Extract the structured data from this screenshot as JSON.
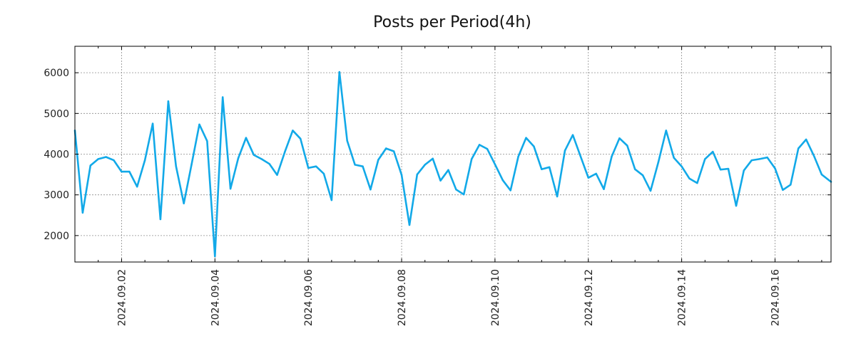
{
  "chart_data": {
    "type": "line",
    "title": "Posts per Period(4h)",
    "xlabel": "",
    "ylabel": "",
    "series_color": "#12a9e8",
    "grid": true,
    "x_start": "2024.09.01",
    "x_end": "2024.09.17",
    "xlim_days": [
      0.0,
      16.2
    ],
    "ylim": [
      1350,
      6650
    ],
    "yticks": [
      2000,
      3000,
      4000,
      5000,
      6000
    ],
    "xtick_labels": [
      {
        "day": 1,
        "label": "2024.09.02"
      },
      {
        "day": 3,
        "label": "2024.09.04"
      },
      {
        "day": 5,
        "label": "2024.09.06"
      },
      {
        "day": 7,
        "label": "2024.09.08"
      },
      {
        "day": 9,
        "label": "2024.09.10"
      },
      {
        "day": 11,
        "label": "2024.09.12"
      },
      {
        "day": 13,
        "label": "2024.09.14"
      },
      {
        "day": 15,
        "label": "2024.09.16"
      }
    ],
    "points": [
      {
        "d": 0.0,
        "v": 4580
      },
      {
        "d": 0.167,
        "v": 2560
      },
      {
        "d": 0.333,
        "v": 3720
      },
      {
        "d": 0.5,
        "v": 3880
      },
      {
        "d": 0.667,
        "v": 3930
      },
      {
        "d": 0.833,
        "v": 3850
      },
      {
        "d": 1.0,
        "v": 3570
      },
      {
        "d": 1.167,
        "v": 3570
      },
      {
        "d": 1.333,
        "v": 3200
      },
      {
        "d": 1.5,
        "v": 3850
      },
      {
        "d": 1.667,
        "v": 4750
      },
      {
        "d": 1.833,
        "v": 2400
      },
      {
        "d": 2.0,
        "v": 5300
      },
      {
        "d": 2.167,
        "v": 3700
      },
      {
        "d": 2.333,
        "v": 2790
      },
      {
        "d": 2.5,
        "v": 3750
      },
      {
        "d": 2.667,
        "v": 4730
      },
      {
        "d": 2.833,
        "v": 4320
      },
      {
        "d": 3.0,
        "v": 1490
      },
      {
        "d": 3.167,
        "v": 5400
      },
      {
        "d": 3.333,
        "v": 3150
      },
      {
        "d": 3.5,
        "v": 3900
      },
      {
        "d": 3.667,
        "v": 4400
      },
      {
        "d": 3.833,
        "v": 3980
      },
      {
        "d": 4.0,
        "v": 3880
      },
      {
        "d": 4.167,
        "v": 3760
      },
      {
        "d": 4.333,
        "v": 3490
      },
      {
        "d": 4.5,
        "v": 4060
      },
      {
        "d": 4.667,
        "v": 4580
      },
      {
        "d": 4.833,
        "v": 4380
      },
      {
        "d": 5.0,
        "v": 3660
      },
      {
        "d": 5.167,
        "v": 3700
      },
      {
        "d": 5.333,
        "v": 3520
      },
      {
        "d": 5.5,
        "v": 2870
      },
      {
        "d": 5.667,
        "v": 6020
      },
      {
        "d": 5.833,
        "v": 4330
      },
      {
        "d": 6.0,
        "v": 3740
      },
      {
        "d": 6.167,
        "v": 3700
      },
      {
        "d": 6.333,
        "v": 3130
      },
      {
        "d": 6.5,
        "v": 3860
      },
      {
        "d": 6.667,
        "v": 4140
      },
      {
        "d": 6.833,
        "v": 4070
      },
      {
        "d": 7.0,
        "v": 3490
      },
      {
        "d": 7.167,
        "v": 2260
      },
      {
        "d": 7.333,
        "v": 3500
      },
      {
        "d": 7.5,
        "v": 3740
      },
      {
        "d": 7.667,
        "v": 3890
      },
      {
        "d": 7.833,
        "v": 3350
      },
      {
        "d": 8.0,
        "v": 3610
      },
      {
        "d": 8.167,
        "v": 3130
      },
      {
        "d": 8.333,
        "v": 3010
      },
      {
        "d": 8.5,
        "v": 3880
      },
      {
        "d": 8.667,
        "v": 4230
      },
      {
        "d": 8.833,
        "v": 4130
      },
      {
        "d": 9.0,
        "v": 3750
      },
      {
        "d": 9.167,
        "v": 3360
      },
      {
        "d": 9.333,
        "v": 3110
      },
      {
        "d": 9.5,
        "v": 3940
      },
      {
        "d": 9.667,
        "v": 4400
      },
      {
        "d": 9.833,
        "v": 4190
      },
      {
        "d": 10.0,
        "v": 3630
      },
      {
        "d": 10.167,
        "v": 3680
      },
      {
        "d": 10.333,
        "v": 2960
      },
      {
        "d": 10.5,
        "v": 4090
      },
      {
        "d": 10.667,
        "v": 4470
      },
      {
        "d": 10.833,
        "v": 3950
      },
      {
        "d": 11.0,
        "v": 3420
      },
      {
        "d": 11.167,
        "v": 3520
      },
      {
        "d": 11.333,
        "v": 3140
      },
      {
        "d": 11.5,
        "v": 3940
      },
      {
        "d": 11.667,
        "v": 4390
      },
      {
        "d": 11.833,
        "v": 4210
      },
      {
        "d": 12.0,
        "v": 3630
      },
      {
        "d": 12.167,
        "v": 3480
      },
      {
        "d": 12.333,
        "v": 3100
      },
      {
        "d": 12.5,
        "v": 3800
      },
      {
        "d": 12.667,
        "v": 4580
      },
      {
        "d": 12.833,
        "v": 3910
      },
      {
        "d": 13.0,
        "v": 3700
      },
      {
        "d": 13.167,
        "v": 3400
      },
      {
        "d": 13.333,
        "v": 3290
      },
      {
        "d": 13.5,
        "v": 3880
      },
      {
        "d": 13.667,
        "v": 4060
      },
      {
        "d": 13.833,
        "v": 3620
      },
      {
        "d": 14.0,
        "v": 3640
      },
      {
        "d": 14.167,
        "v": 2730
      },
      {
        "d": 14.333,
        "v": 3600
      },
      {
        "d": 14.5,
        "v": 3850
      },
      {
        "d": 14.667,
        "v": 3880
      },
      {
        "d": 14.833,
        "v": 3920
      },
      {
        "d": 15.0,
        "v": 3650
      },
      {
        "d": 15.167,
        "v": 3120
      },
      {
        "d": 15.333,
        "v": 3250
      },
      {
        "d": 15.5,
        "v": 4140
      },
      {
        "d": 15.667,
        "v": 4360
      },
      {
        "d": 15.833,
        "v": 3960
      },
      {
        "d": 16.0,
        "v": 3500
      },
      {
        "d": 16.2,
        "v": 3320
      }
    ]
  }
}
